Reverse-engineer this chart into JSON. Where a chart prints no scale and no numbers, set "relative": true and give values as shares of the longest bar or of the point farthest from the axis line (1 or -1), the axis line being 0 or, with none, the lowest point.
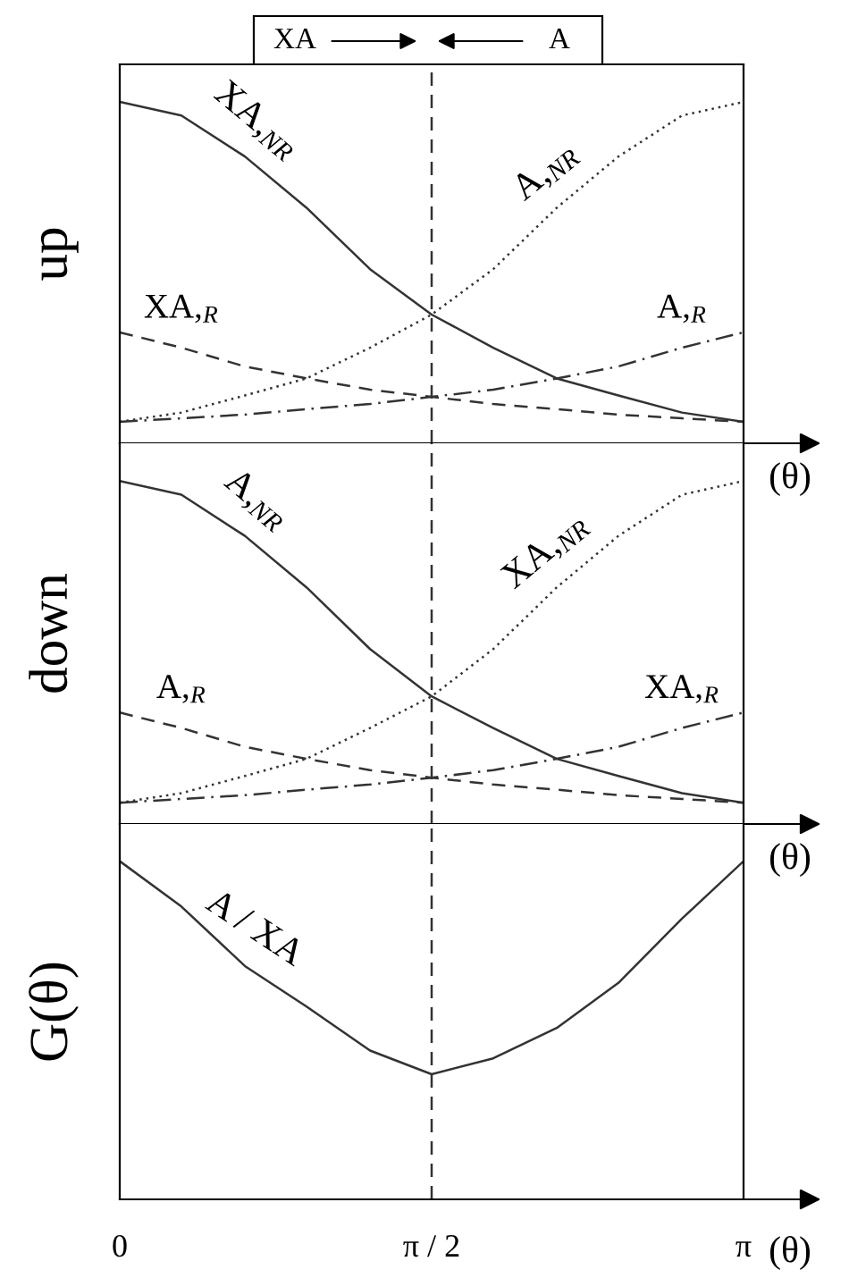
{
  "chart_data": [
    {
      "type": "line",
      "relative": true,
      "ylabel": "up",
      "xlabel": "(θ)",
      "annotations": [
        "XA",
        "A"
      ],
      "tick_labels": false,
      "x": [
        0,
        0.31,
        0.63,
        0.94,
        1.26,
        1.57,
        1.88,
        2.2,
        2.51,
        2.83,
        3.14
      ],
      "xlim": [
        0,
        3.14
      ],
      "ref_lines": [
        {
          "axis": "x",
          "value": 1.57,
          "label": null,
          "line_style": "dashed",
          "color": "#333333"
        }
      ],
      "series": [
        {
          "name": "XA,$_{NR}$",
          "color": "#333333",
          "line_style": "solid",
          "values": [
            1,
            0.96,
            0.84,
            0.69,
            0.51,
            0.377,
            0.28,
            0.19,
            0.14,
            0.09,
            0.063
          ]
        },
        {
          "name": "A,$_{NR}$",
          "color": "#333333",
          "line_style": "dotted",
          "values": [
            0.063,
            0.09,
            0.14,
            0.19,
            0.28,
            0.377,
            0.51,
            0.69,
            0.84,
            0.96,
            1
          ]
        },
        {
          "name": "XA,$_{R}$",
          "color": "#333333",
          "line_style": "dashed",
          "values": [
            0.325,
            0.28,
            0.225,
            0.19,
            0.157,
            0.136,
            0.115,
            0.1,
            0.084,
            0.073,
            0.063
          ]
        },
        {
          "name": "A,$_{R}$",
          "color": "#333333",
          "line_style": "dashdot",
          "values": [
            0.063,
            0.073,
            0.084,
            0.1,
            0.115,
            0.136,
            0.157,
            0.19,
            0.225,
            0.28,
            0.325
          ]
        }
      ]
    },
    {
      "type": "line",
      "relative": true,
      "ylabel": "down",
      "xlabel": "(θ)",
      "tick_labels": false,
      "x": [
        0,
        0.31,
        0.63,
        0.94,
        1.26,
        1.57,
        1.88,
        2.2,
        2.51,
        2.83,
        3.14
      ],
      "xlim": [
        0,
        3.14
      ],
      "ref_lines": [
        {
          "axis": "x",
          "value": 1.57,
          "label": null,
          "line_style": "dashed",
          "color": "#333333"
        }
      ],
      "series": [
        {
          "name": "A,$_{NR}$",
          "color": "#333333",
          "line_style": "solid",
          "values": [
            1,
            0.96,
            0.84,
            0.69,
            0.51,
            0.372,
            0.28,
            0.19,
            0.14,
            0.09,
            0.062
          ]
        },
        {
          "name": "XA,$_{NR}$",
          "color": "#333333",
          "line_style": "dotted",
          "values": [
            0.062,
            0.09,
            0.14,
            0.19,
            0.28,
            0.372,
            0.51,
            0.69,
            0.84,
            0.96,
            1
          ]
        },
        {
          "name": "A,$_{R}$",
          "color": "#333333",
          "line_style": "dashed",
          "values": [
            0.325,
            0.28,
            0.225,
            0.19,
            0.157,
            0.135,
            0.115,
            0.1,
            0.084,
            0.073,
            0.062
          ]
        },
        {
          "name": "XA,$_{R}$",
          "color": "#333333",
          "line_style": "dashdot",
          "values": [
            0.062,
            0.073,
            0.084,
            0.1,
            0.115,
            0.135,
            0.157,
            0.19,
            0.225,
            0.28,
            0.325
          ]
        }
      ]
    },
    {
      "type": "line",
      "relative": true,
      "ylabel": "G(θ)",
      "xlabel": "(θ)",
      "tick_labels": "x",
      "x": [
        0,
        0.31,
        0.63,
        0.94,
        1.26,
        1.57,
        1.88,
        2.2,
        2.51,
        2.83,
        3.14
      ],
      "xlim": [
        0,
        3.14
      ],
      "xticks": [
        {
          "value": 0,
          "label": "0"
        },
        {
          "value": 1.57,
          "label": "π / 2"
        },
        {
          "value": 3.14,
          "label": "π"
        }
      ],
      "ref_lines": [
        {
          "axis": "x",
          "value": 1.57,
          "label": null,
          "line_style": "dashed",
          "color": "#333333"
        }
      ],
      "series": [
        {
          "name": "A / XA",
          "color": "#333333",
          "line_style": "solid",
          "values": [
            1,
            0.866,
            0.69,
            0.57,
            0.44,
            0.37,
            0.417,
            0.507,
            0.64,
            0.83,
            1
          ]
        }
      ]
    }
  ]
}
